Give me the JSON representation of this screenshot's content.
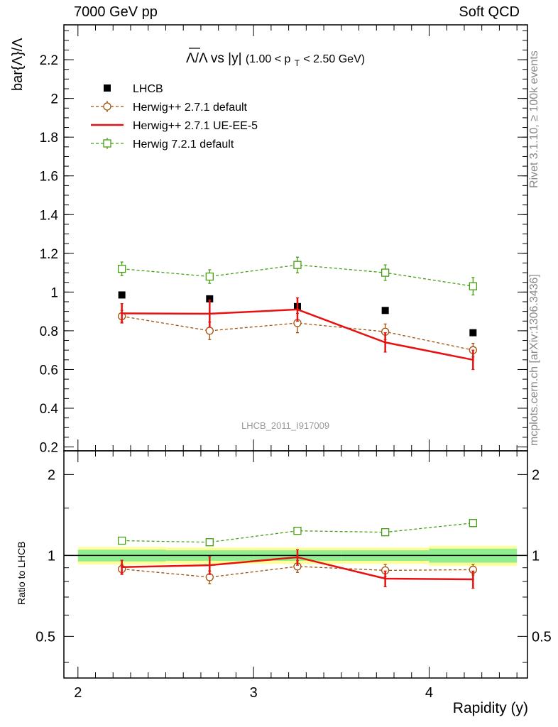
{
  "header": {
    "left_label": "7000 GeV pp",
    "right_label": "Soft QCD"
  },
  "side_labels": {
    "rivet": "Rivet 3.1.10, ≥ 100k events",
    "mcplots": "mcplots.cern.ch [arXiv:1306.3436]"
  },
  "watermark": "LHCB_2011_I917009",
  "chart_data": [
    {
      "type": "scatter",
      "panel": "main",
      "title_parts": {
        "main": "Λ/Λ vs |y|",
        "cut_pre": "(1.00 < p",
        "cut_sub": "T",
        "cut_post": " < 2.50 GeV)"
      },
      "ylabel": "bar{Λ}/Λ",
      "xlabel": "Rapidity (y)",
      "xlim": [
        1.92,
        4.56
      ],
      "ylim": [
        0.18,
        2.38
      ],
      "yticks": [
        0.2,
        0.4,
        0.6,
        0.8,
        1,
        1.2,
        1.4,
        1.6,
        1.8,
        2,
        2.2
      ],
      "ytick_labels": [
        "0.2",
        "0.4",
        "0.6",
        "0.8",
        "1",
        "1.2",
        "1.4",
        "1.6",
        "1.8",
        "2",
        "2.2"
      ],
      "x": [
        2.25,
        2.75,
        3.25,
        3.75,
        4.25
      ],
      "series": [
        {
          "name": "LHCB",
          "style": "data",
          "color": "#000000",
          "values": [
            0.985,
            0.965,
            0.925,
            0.905,
            0.79
          ]
        },
        {
          "name": "Herwig++ 2.7.1 default",
          "style": "dashed-circle",
          "color": "#a0500a",
          "values": [
            0.875,
            0.8,
            0.84,
            0.795,
            0.7
          ],
          "errors": [
            0.03,
            0.045,
            0.05,
            0.04,
            0.035
          ]
        },
        {
          "name": "Herwig++ 2.7.1 UE-EE-5",
          "style": "solid-line",
          "color": "#e81010",
          "values": [
            0.89,
            0.888,
            0.91,
            0.74,
            0.65
          ],
          "errors": [
            0.05,
            0.07,
            0.06,
            0.05,
            0.05
          ]
        },
        {
          "name": "Herwig 7.2.1 default",
          "style": "dashed-square",
          "color": "#44a010",
          "values": [
            1.12,
            1.08,
            1.14,
            1.1,
            1.03
          ],
          "errors": [
            0.035,
            0.035,
            0.04,
            0.04,
            0.045
          ]
        }
      ]
    },
    {
      "type": "scatter",
      "panel": "ratio",
      "ylabel": "Ratio to LHCB",
      "xlabel": "Rapidity (y)",
      "log_y": true,
      "xlim": [
        1.92,
        4.56
      ],
      "ylim": [
        0.35,
        2.45
      ],
      "yticks": [
        0.5,
        1,
        2
      ],
      "ytick_labels": [
        "0.5",
        "1",
        "2"
      ],
      "xticks": [
        2,
        3,
        4
      ],
      "xtick_labels": [
        "2",
        "3",
        "4"
      ],
      "x": [
        2.25,
        2.75,
        3.25,
        3.75,
        4.25
      ],
      "reference_band": {
        "bins": [
          [
            2.0,
            2.5
          ],
          [
            2.5,
            3.0
          ],
          [
            3.0,
            3.5
          ],
          [
            3.5,
            4.0
          ],
          [
            4.0,
            4.5
          ]
        ],
        "inner": [
          0.05,
          0.045,
          0.045,
          0.045,
          0.06
        ],
        "outer": [
          0.075,
          0.07,
          0.07,
          0.07,
          0.085
        ],
        "inner_color": "#90ee90",
        "outer_color": "#ffff99"
      },
      "series": [
        {
          "name": "Herwig++ 2.7.1 default",
          "color": "#a0500a",
          "values": [
            0.89,
            0.83,
            0.91,
            0.88,
            0.885
          ],
          "errors": [
            0.035,
            0.045,
            0.045,
            0.045,
            0.04
          ]
        },
        {
          "name": "Herwig++ 2.7.1 UE-EE-5",
          "color": "#e81010",
          "values": [
            0.905,
            0.92,
            0.985,
            0.82,
            0.815
          ],
          "errors": [
            0.055,
            0.07,
            0.065,
            0.055,
            0.06
          ]
        },
        {
          "name": "Herwig 7.2.1 default",
          "color": "#44a010",
          "values": [
            1.135,
            1.12,
            1.235,
            1.22,
            1.32
          ],
          "errors": [
            0.03,
            0.03,
            0.035,
            0.035,
            0.04
          ]
        }
      ]
    }
  ]
}
